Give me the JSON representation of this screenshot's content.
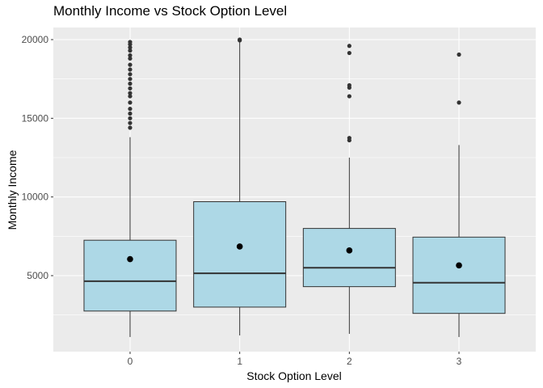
{
  "chart_data": {
    "type": "box",
    "title": "Monthly Income vs Stock Option Level",
    "xlabel": "Stock Option Level",
    "ylabel": "Monthly Income",
    "categories": [
      "0",
      "1",
      "2",
      "3"
    ],
    "ylim": [
      0,
      21500
    ],
    "yticks": [
      5000,
      10000,
      15000,
      20000
    ],
    "grid": true,
    "box_fill": "#add8e6",
    "panel_background": "#ebebeb",
    "grid_color": "#ffffff",
    "boxes": [
      {
        "category": "0",
        "whisker_low": 1100,
        "q1": 2750,
        "median": 4650,
        "q3": 7250,
        "whisker_high": 13800,
        "mean": 6050,
        "outliers": [
          14400,
          14700,
          15000,
          15300,
          15600,
          16000,
          16400,
          16600,
          16900,
          17200,
          17500,
          17800,
          18100,
          18400,
          18800,
          19000,
          19300,
          19500,
          19700,
          19850
        ]
      },
      {
        "category": "1",
        "whisker_low": 1200,
        "q1": 3000,
        "median": 5150,
        "q3": 9700,
        "whisker_high": 19900,
        "mean": 6850,
        "outliers": [
          19950,
          20000
        ]
      },
      {
        "category": "2",
        "whisker_low": 1300,
        "q1": 4300,
        "median": 5500,
        "q3": 8000,
        "whisker_high": 12500,
        "mean": 6600,
        "outliers": [
          13600,
          13750,
          16400,
          16950,
          17100,
          19150,
          19600
        ]
      },
      {
        "category": "3",
        "whisker_low": 1100,
        "q1": 2600,
        "median": 4550,
        "q3": 7450,
        "whisker_high": 13300,
        "mean": 5650,
        "outliers": [
          16000,
          19050
        ]
      }
    ]
  }
}
